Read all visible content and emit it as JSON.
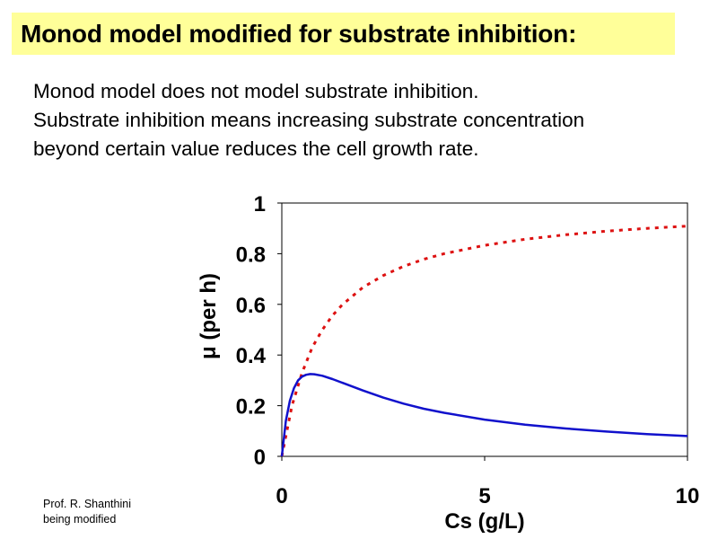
{
  "header": {
    "title": "Monod model modified for substrate inhibition:"
  },
  "body": {
    "lines": [
      "Monod model does not model substrate inhibition.",
      "Substrate inhibition means increasing substrate concentration",
      "beyond certain value reduces the cell growth rate."
    ]
  },
  "credit": {
    "line1": "Prof. R. Shanthini",
    "line2": "being modified"
  },
  "chart_data": {
    "type": "line",
    "title": "",
    "xlabel": "Cs (g/L)",
    "ylabel": "μ (per h)",
    "xlim": [
      0,
      10
    ],
    "ylim": [
      0,
      1
    ],
    "x_ticks": [
      "0",
      "5",
      "10"
    ],
    "y_ticks": [
      "0",
      "0.2",
      "0.4",
      "0.6",
      "0.8",
      "1"
    ],
    "grid": false,
    "legend": "none",
    "series": [
      {
        "style": "dotted",
        "color": "#dd1111",
        "x": [
          0,
          0.25,
          0.5,
          0.75,
          1,
          1.25,
          1.5,
          2,
          2.5,
          3,
          3.5,
          4,
          5,
          6,
          7,
          8,
          9,
          10
        ],
        "y": [
          0.0,
          0.2,
          0.33,
          0.43,
          0.5,
          0.556,
          0.6,
          0.667,
          0.714,
          0.75,
          0.778,
          0.8,
          0.833,
          0.857,
          0.875,
          0.889,
          0.9,
          0.909
        ]
      },
      {
        "style": "solid",
        "color": "#1111cc",
        "x": [
          0,
          0.1,
          0.2,
          0.3,
          0.4,
          0.5,
          0.6,
          0.7,
          0.8,
          1,
          1.25,
          1.5,
          2,
          2.5,
          3,
          3.5,
          4,
          5,
          6,
          7,
          8,
          9,
          10
        ],
        "y": [
          0.0,
          0.14,
          0.22,
          0.27,
          0.3,
          0.315,
          0.322,
          0.325,
          0.324,
          0.318,
          0.305,
          0.29,
          0.26,
          0.232,
          0.208,
          0.188,
          0.172,
          0.145,
          0.125,
          0.11,
          0.098,
          0.088,
          0.08
        ]
      }
    ]
  }
}
